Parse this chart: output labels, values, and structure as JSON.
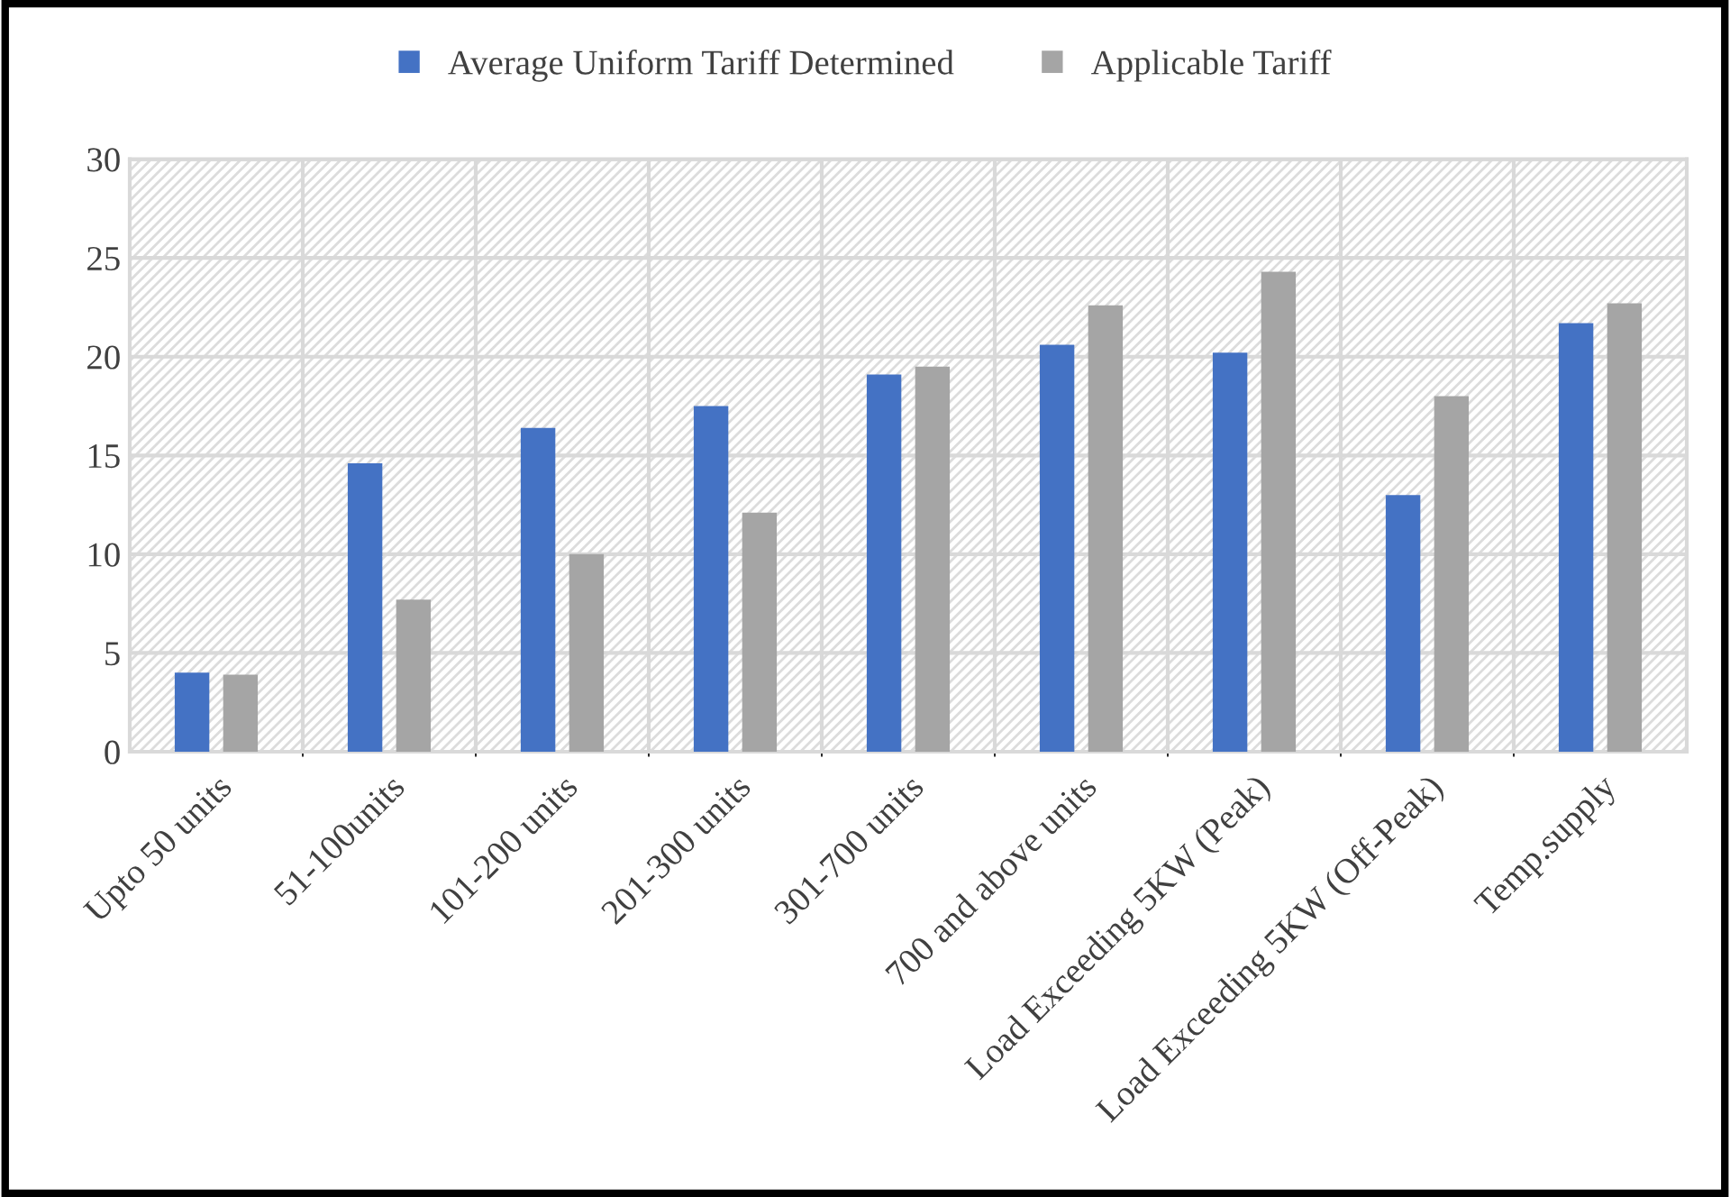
{
  "chart_data": {
    "type": "bar",
    "categories": [
      "Upto 50 units",
      "51-100units",
      "101-200 units",
      "201-300 units",
      "301-700 units",
      "700 and above units",
      "Load Exceeding 5KW (Peak)",
      "Load Exceeding 5KW (Off-Peak)",
      "Temp.supply"
    ],
    "series": [
      {
        "name": "Average Uniform Tariff Determined",
        "color": "#4472c4",
        "values": [
          4.0,
          14.6,
          16.4,
          17.5,
          19.1,
          20.6,
          20.2,
          13.0,
          21.7
        ]
      },
      {
        "name": "Applicable Tariff",
        "color": "#a5a5a5",
        "values": [
          3.9,
          7.7,
          10.0,
          12.1,
          19.5,
          22.6,
          24.3,
          18.0,
          22.7
        ]
      }
    ],
    "ylim": [
      0,
      30
    ],
    "yticks": [
      0,
      5,
      10,
      15,
      20,
      25,
      30
    ],
    "grid": true,
    "legend": "top"
  }
}
